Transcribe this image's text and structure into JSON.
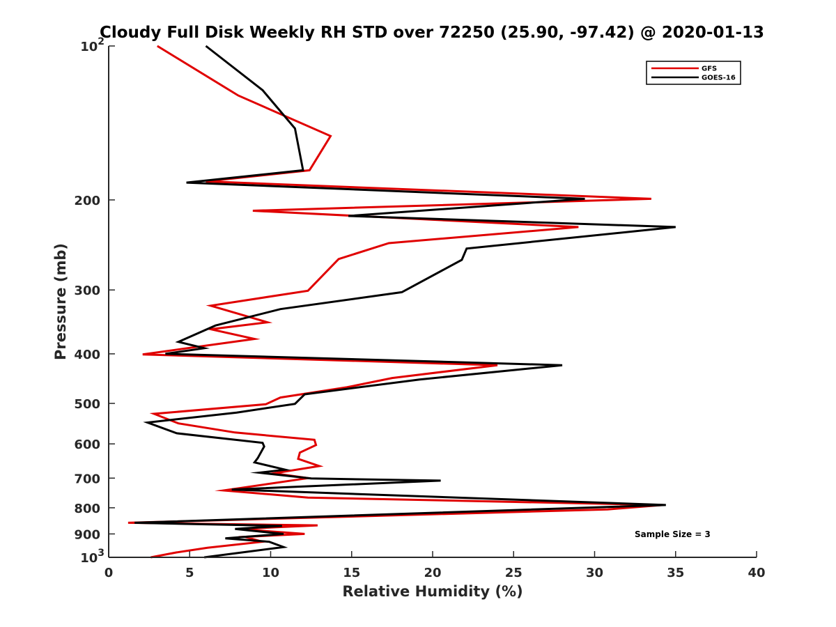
{
  "chart_data": {
    "type": "line",
    "title": "Cloudy Full Disk Weekly RH STD over 72250 (25.90, -97.42) @ 2020-01-13",
    "xlabel": "Relative Humidity (%)",
    "ylabel": "Pressure (mb)",
    "xlim": [
      0,
      40
    ],
    "ylim": [
      100,
      1000
    ],
    "y_scale": "log",
    "y_reversed": true,
    "x_ticks": [
      "0",
      "5",
      "10",
      "15",
      "20",
      "25",
      "30",
      "35",
      "40"
    ],
    "y_ticks": [
      {
        "value": 100,
        "label": "10",
        "sup": "2"
      },
      {
        "value": 200,
        "label": "200",
        "sup": ""
      },
      {
        "value": 300,
        "label": "300",
        "sup": ""
      },
      {
        "value": 400,
        "label": "400",
        "sup": ""
      },
      {
        "value": 500,
        "label": "500",
        "sup": ""
      },
      {
        "value": 600,
        "label": "600",
        "sup": ""
      },
      {
        "value": 700,
        "label": "700",
        "sup": ""
      },
      {
        "value": 800,
        "label": "800",
        "sup": ""
      },
      {
        "value": 900,
        "label": "900",
        "sup": ""
      },
      {
        "value": 1000,
        "label": "10",
        "sup": "3"
      }
    ],
    "grid": false,
    "legend_position": "top-right",
    "series": [
      {
        "name": "GFS",
        "color": "#e00000",
        "points": [
          [
            3.0,
            100
          ],
          [
            8.0,
            125
          ],
          [
            13.7,
            150
          ],
          [
            12.4,
            175
          ],
          [
            6.0,
            184
          ],
          [
            33.5,
            199
          ],
          [
            8.9,
            210
          ],
          [
            29.0,
            226
          ],
          [
            17.3,
            243
          ],
          [
            14.2,
            261
          ],
          [
            12.3,
            301
          ],
          [
            6.3,
            322
          ],
          [
            9.8,
            347
          ],
          [
            6.3,
            358
          ],
          [
            9.0,
            374
          ],
          [
            2.1,
            401
          ],
          [
            24.0,
            421
          ],
          [
            17.5,
            446
          ],
          [
            14.7,
            465
          ],
          [
            10.6,
            487
          ],
          [
            9.7,
            502
          ],
          [
            2.8,
            524
          ],
          [
            4.3,
            547
          ],
          [
            7.8,
            570
          ],
          [
            12.7,
            589
          ],
          [
            12.8,
            603
          ],
          [
            11.8,
            624
          ],
          [
            11.7,
            642
          ],
          [
            13.0,
            663
          ],
          [
            10.2,
            685
          ],
          [
            12.3,
            700
          ],
          [
            7.1,
            740
          ],
          [
            12.3,
            764
          ],
          [
            34.2,
            790
          ],
          [
            30.8,
            806
          ],
          [
            1.2,
            856
          ],
          [
            12.9,
            866
          ],
          [
            8.0,
            880
          ],
          [
            12.1,
            900
          ],
          [
            8.4,
            912
          ],
          [
            9.5,
            932
          ],
          [
            6.1,
            958
          ],
          [
            4.2,
            978
          ],
          [
            2.6,
            1000
          ]
        ]
      },
      {
        "name": "GOES-16",
        "color": "#000000",
        "points": [
          [
            6.0,
            100
          ],
          [
            9.5,
            122
          ],
          [
            11.5,
            145
          ],
          [
            12.0,
            175
          ],
          [
            4.8,
            185
          ],
          [
            29.4,
            199
          ],
          [
            14.8,
            215
          ],
          [
            35.0,
            226
          ],
          [
            22.1,
            249
          ],
          [
            21.8,
            262
          ],
          [
            18.1,
            303
          ],
          [
            10.6,
            327
          ],
          [
            6.6,
            352
          ],
          [
            4.3,
            379
          ],
          [
            5.9,
            390
          ],
          [
            3.5,
            400
          ],
          [
            28.0,
            421
          ],
          [
            19.2,
            449
          ],
          [
            12.1,
            480
          ],
          [
            11.5,
            501
          ],
          [
            7.9,
            521
          ],
          [
            2.4,
            545
          ],
          [
            4.2,
            572
          ],
          [
            9.5,
            597
          ],
          [
            9.6,
            607
          ],
          [
            9.2,
            640
          ],
          [
            9.0,
            652
          ],
          [
            10.9,
            674
          ],
          [
            9.3,
            683
          ],
          [
            12.5,
            701
          ],
          [
            20.5,
            708
          ],
          [
            7.6,
            737
          ],
          [
            34.4,
            790
          ],
          [
            1.6,
            856
          ],
          [
            10.7,
            868
          ],
          [
            7.8,
            880
          ],
          [
            10.8,
            900
          ],
          [
            7.2,
            918
          ],
          [
            9.9,
            932
          ],
          [
            10.8,
            955
          ],
          [
            5.9,
            1000
          ]
        ]
      }
    ],
    "legend": [
      {
        "label": "GFS",
        "color": "#e00000"
      },
      {
        "label": "GOES-16",
        "color": "#000000"
      }
    ],
    "annotation": "Sample Size = 3"
  }
}
